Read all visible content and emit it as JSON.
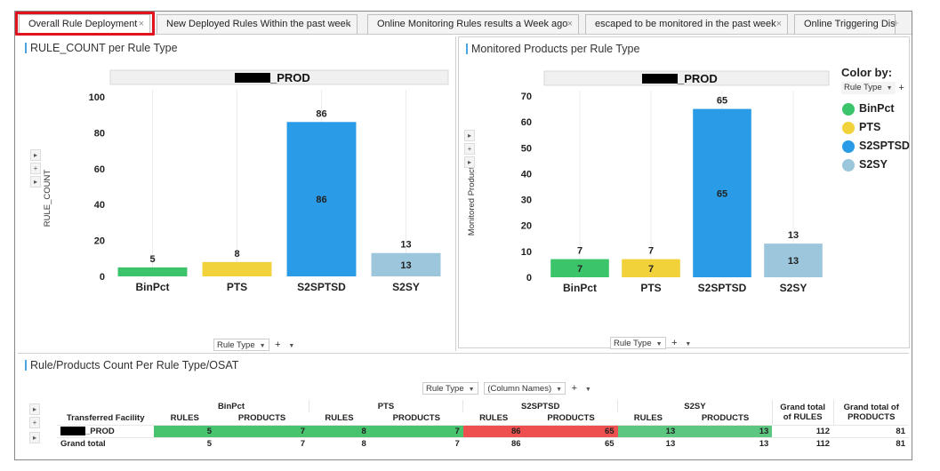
{
  "tabs": [
    {
      "label": "Overall Rule Deployment",
      "close": "×"
    },
    {
      "label": "New Deployed Rules Within the past week",
      "close": "×"
    },
    {
      "label": "Online Monitoring Rules results a Week ago",
      "close": "×"
    },
    {
      "label": "escaped to be monitored in the past week",
      "close": "×"
    },
    {
      "label": "Online Triggering Dist",
      "close": ""
    }
  ],
  "tab_add": "+",
  "left_panel": {
    "title": "RULE_COUNT per Rule Type",
    "trellis_label": "_PROD",
    "ylabel": "RULE_COUNT",
    "x_control": {
      "label": "Rule Type",
      "plus": "+"
    }
  },
  "right_panel": {
    "title": "Monitored Products per Rule Type",
    "trellis_label": "_PROD",
    "ylabel": "Monitored Products",
    "x_control": {
      "label": "Rule Type",
      "plus": "+"
    },
    "legend": {
      "title": "Color by:",
      "control": "Rule Type",
      "plus": "+",
      "items": [
        {
          "label": "BinPct",
          "color": "#3cc46a"
        },
        {
          "label": "PTS",
          "color": "#f2d23a"
        },
        {
          "label": "S2SPTSD",
          "color": "#2a9be6"
        },
        {
          "label": "S2SY",
          "color": "#9cc6dc"
        }
      ]
    }
  },
  "chart_data": [
    {
      "type": "bar",
      "title": "RULE_COUNT per Rule Type",
      "ylabel": "RULE_COUNT",
      "categories": [
        "BinPct",
        "PTS",
        "S2SPTSD",
        "S2SY"
      ],
      "values": [
        5,
        8,
        86,
        13
      ],
      "colors": [
        "#3cc46a",
        "#f2d23a",
        "#2a9be6",
        "#9cc6dc"
      ],
      "inner_labels": [
        false,
        false,
        true,
        true
      ],
      "ylim": [
        0,
        100
      ],
      "yticks": [
        0,
        20,
        40,
        60,
        80,
        100
      ]
    },
    {
      "type": "bar",
      "title": "Monitored Products per Rule Type",
      "ylabel": "Monitored Products",
      "categories": [
        "BinPct",
        "PTS",
        "S2SPTSD",
        "S2SY"
      ],
      "values": [
        7,
        7,
        65,
        13
      ],
      "colors": [
        "#3cc46a",
        "#f2d23a",
        "#2a9be6",
        "#9cc6dc"
      ],
      "inner_labels": [
        true,
        true,
        true,
        true
      ],
      "ylim": [
        0,
        70
      ],
      "yticks": [
        0,
        10,
        20,
        30,
        40,
        50,
        60,
        70
      ]
    }
  ],
  "bottom_panel": {
    "title": "Rule/Products Count Per Rule Type/OSAT",
    "controls": {
      "rule_type": "Rule Type",
      "column_names": "(Column Names)",
      "plus": "+"
    },
    "table": {
      "row_header": "Transferred Facility",
      "groups": [
        "BinPct",
        "PTS",
        "S2SPTSD",
        "S2SY"
      ],
      "sub_headers": [
        "RULES",
        "PRODUCTS"
      ],
      "grand_rules_header": "Grand total of RULES",
      "grand_products_header": "Grand total of PRODUCTS",
      "rows": [
        {
          "label": "_PROD",
          "values": [
            "5",
            "7",
            "8",
            "7",
            "86",
            "65",
            "13",
            "13"
          ],
          "grand_rules": "112",
          "grand_products": "81"
        },
        {
          "label": "Grand total",
          "values": [
            "5",
            "7",
            "8",
            "7",
            "86",
            "65",
            "13",
            "13"
          ],
          "grand_rules": "112",
          "grand_products": "81"
        }
      ]
    }
  }
}
